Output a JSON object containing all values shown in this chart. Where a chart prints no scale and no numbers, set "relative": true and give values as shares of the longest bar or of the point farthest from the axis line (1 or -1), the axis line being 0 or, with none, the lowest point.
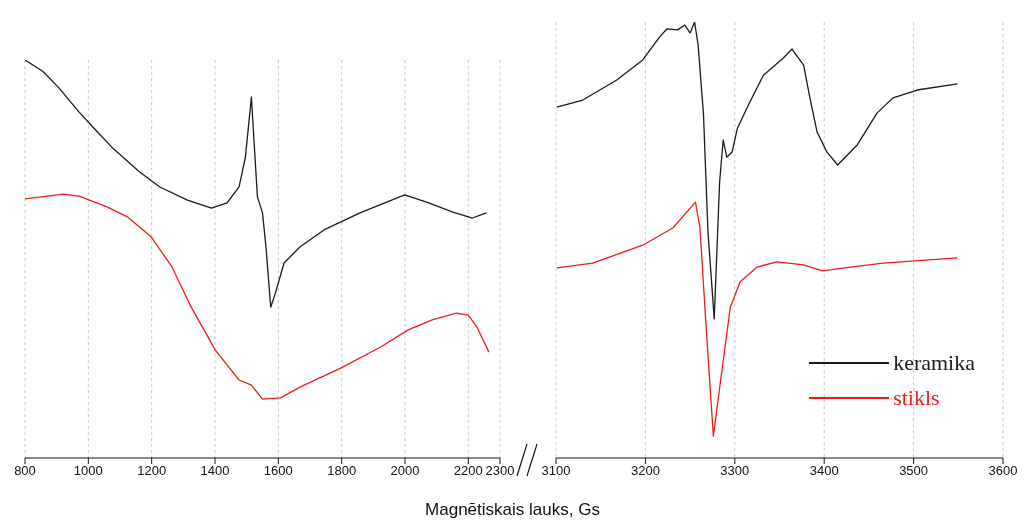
{
  "chart_data": [
    {
      "type": "line",
      "relative": true,
      "xlim": [
        800,
        2300
      ],
      "xticks": [
        800,
        1000,
        1200,
        1400,
        1600,
        1800,
        2000,
        2200,
        2300
      ],
      "grid": "x",
      "line_style": "solid",
      "marker": "none",
      "series": [
        {
          "color": "#1a1a1a",
          "x": [
            800,
            857,
            907,
            971,
            1017,
            1074,
            1161,
            1226,
            1313,
            1389,
            1438,
            1476,
            1496,
            1515,
            1523,
            1534,
            1550,
            1561,
            1576,
            1591,
            1618,
            1668,
            1744,
            1858,
            1999,
            2075,
            2151,
            2213,
            2257
          ],
          "values": [
            1.0,
            0.971,
            0.93,
            0.869,
            0.829,
            0.781,
            0.719,
            0.681,
            0.648,
            0.628,
            0.641,
            0.681,
            0.756,
            0.907,
            0.799,
            0.656,
            0.616,
            0.53,
            0.379,
            0.415,
            0.49,
            0.53,
            0.573,
            0.616,
            0.661,
            0.641,
            0.618,
            0.603,
            0.616
          ]
        },
        {
          "color": "#ee1c1c",
          "x": [
            800,
            922,
            971,
            1059,
            1123,
            1199,
            1264,
            1325,
            1401,
            1476,
            1515,
            1550,
            1607,
            1668,
            1797,
            1923,
            2010,
            2086,
            2162,
            2200,
            2227,
            2265
          ],
          "values": [
            0.651,
            0.663,
            0.658,
            0.631,
            0.606,
            0.555,
            0.48,
            0.379,
            0.271,
            0.196,
            0.183,
            0.148,
            0.151,
            0.178,
            0.226,
            0.279,
            0.322,
            0.347,
            0.364,
            0.359,
            0.329,
            0.266
          ]
        }
      ]
    },
    {
      "type": "line",
      "relative": true,
      "xlim": [
        3100,
        3600
      ],
      "xticks": [
        3100,
        3200,
        3300,
        3400,
        3500,
        3600
      ],
      "grid": "x",
      "line_style": "solid",
      "marker": "none",
      "legend": "bottom right",
      "xlabel": "Magnētiskais lauks, Gs",
      "series": [
        {
          "name": "keramika",
          "color": "#1a1a1a",
          "x": [
            3101,
            3130,
            3168,
            3197,
            3216,
            3224,
            3236,
            3244,
            3250,
            3255,
            3259,
            3265,
            3270,
            3277,
            3283,
            3287,
            3291,
            3297,
            3303,
            3317,
            3332,
            3354,
            3364,
            3377,
            3384,
            3392,
            3403,
            3415,
            3437,
            3459,
            3477,
            3504,
            3549
          ],
          "values": [
            0.805,
            0.821,
            0.867,
            0.913,
            0.966,
            0.984,
            0.982,
            0.993,
            0.975,
            1.0,
            0.947,
            0.787,
            0.518,
            0.319,
            0.633,
            0.729,
            0.69,
            0.702,
            0.757,
            0.817,
            0.878,
            0.917,
            0.938,
            0.901,
            0.826,
            0.748,
            0.702,
            0.672,
            0.718,
            0.791,
            0.826,
            0.844,
            0.858
          ]
        },
        {
          "name": "stikls",
          "color": "#ee1c1c",
          "x": [
            3101,
            3141,
            3197,
            3231,
            3256,
            3261,
            3267,
            3276,
            3284,
            3295,
            3306,
            3325,
            3347,
            3377,
            3398,
            3429,
            3466,
            3549
          ],
          "values": [
            0.436,
            0.447,
            0.488,
            0.528,
            0.587,
            0.528,
            0.33,
            0.05,
            0.176,
            0.346,
            0.404,
            0.438,
            0.45,
            0.443,
            0.429,
            0.438,
            0.447,
            0.459
          ]
        }
      ]
    }
  ]
}
